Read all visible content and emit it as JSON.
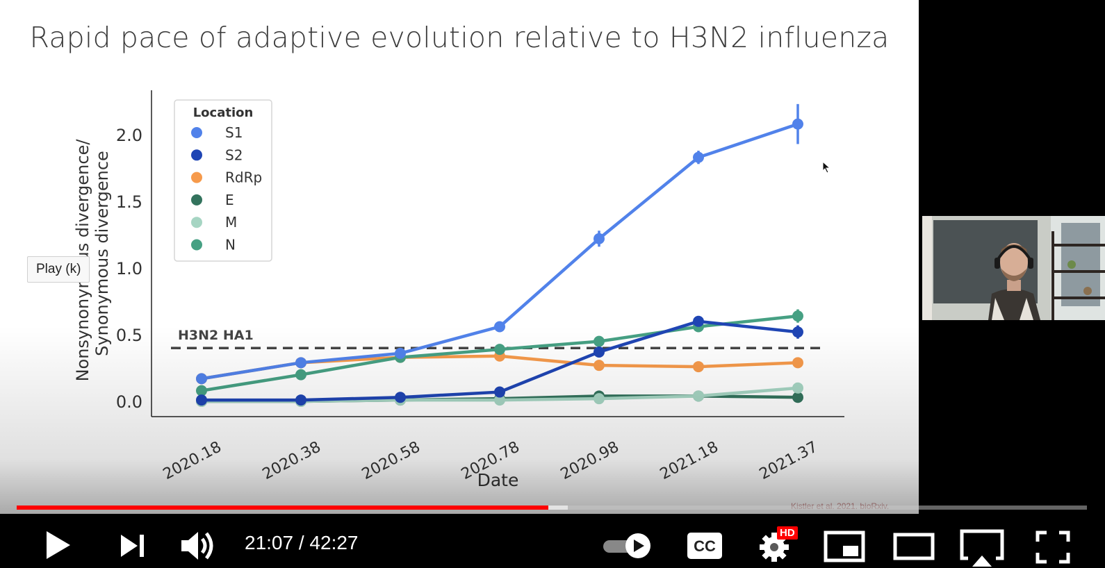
{
  "slide": {
    "title": "Rapid pace of adaptive evolution relative to H3N2 influenza",
    "citation": "Kistler et al. 2021. bioRxiv."
  },
  "chart_data": {
    "type": "line",
    "xlabel": "Date",
    "ylabel_line1": "Nonsynonymous divergence/",
    "ylabel_line2": "Synonymous divergence",
    "categories": [
      "2020.18",
      "2020.38",
      "2020.58",
      "2020.78",
      "2020.98",
      "2021.18",
      "2021.37"
    ],
    "yticks": [
      "0.0",
      "0.5",
      "1.0",
      "1.5",
      "2.0"
    ],
    "ylim": [
      -0.1,
      2.35
    ],
    "legend": {
      "title": "Location",
      "position": "top-left"
    },
    "reference_line": {
      "label": "H3N2 HA1",
      "value": 0.4,
      "style": "dashed"
    },
    "series": [
      {
        "name": "S1",
        "color": "#5182ea",
        "values": [
          0.17,
          0.29,
          0.36,
          0.56,
          1.22,
          1.83,
          2.08
        ],
        "errors": [
          0,
          0,
          0,
          0,
          0.06,
          0.05,
          0.15
        ]
      },
      {
        "name": "S2",
        "color": "#1f45b4",
        "values": [
          0.01,
          0.01,
          0.03,
          0.07,
          0.37,
          0.6,
          0.52
        ],
        "errors": [
          0,
          0,
          0,
          0,
          0.03,
          0,
          0.05
        ]
      },
      {
        "name": "RdRp",
        "color": "#f69a4b",
        "values": [
          0.17,
          0.29,
          0.33,
          0.34,
          0.27,
          0.26,
          0.29
        ],
        "errors": [
          0,
          0,
          0,
          0,
          0,
          0,
          0
        ]
      },
      {
        "name": "E",
        "color": "#33735d",
        "values": [
          0.0,
          0.0,
          0.01,
          0.02,
          0.04,
          0.04,
          0.03
        ],
        "errors": [
          0,
          0,
          0,
          0,
          0,
          0,
          0
        ]
      },
      {
        "name": "M",
        "color": "#a6d5c3",
        "values": [
          0.0,
          0.0,
          0.01,
          0.01,
          0.02,
          0.04,
          0.1
        ],
        "errors": [
          0,
          0,
          0,
          0,
          0,
          0,
          0
        ]
      },
      {
        "name": "N",
        "color": "#46a083",
        "values": [
          0.08,
          0.2,
          0.33,
          0.39,
          0.45,
          0.56,
          0.64
        ],
        "errors": [
          0,
          0,
          0,
          0,
          0,
          0,
          0.05
        ]
      }
    ]
  },
  "player": {
    "tooltip": "Play (k)",
    "current_time": "21:07",
    "time_separator": "/",
    "duration": "42:27",
    "progress_played": 0.4965,
    "progress_buffered": 0.5152,
    "hd_badge": "HD",
    "accent_color": "#ff0000",
    "icons": {
      "play": "play-icon",
      "next": "next-icon",
      "volume": "volume-icon",
      "autoplay": "autoplay-toggle-icon",
      "captions": "cc-icon",
      "settings": "gear-icon",
      "miniplayer": "miniplayer-icon",
      "theater": "theater-icon",
      "cast": "cast-icon",
      "fullscreen": "fullscreen-icon"
    }
  }
}
